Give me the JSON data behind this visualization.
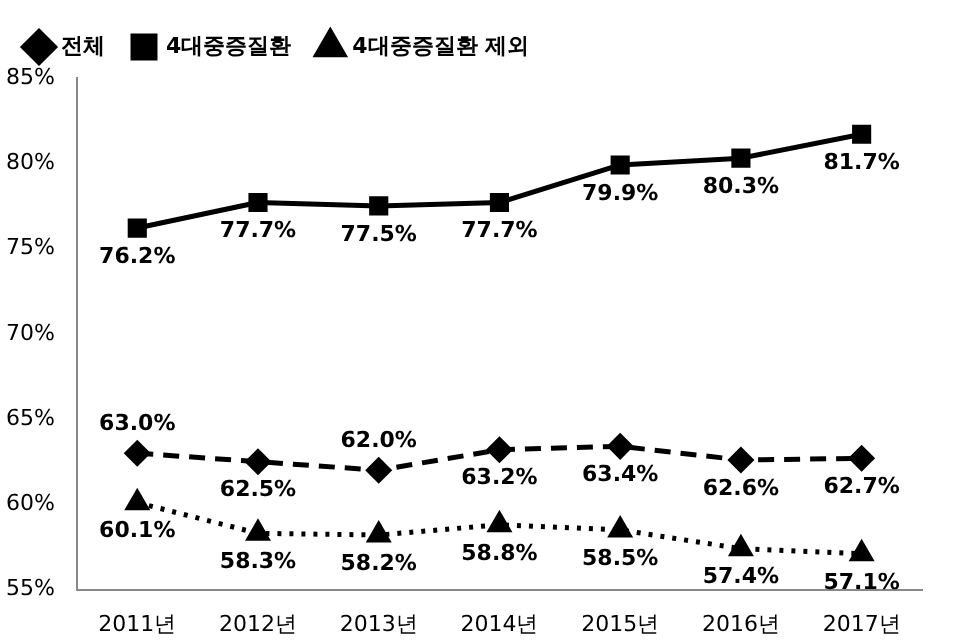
{
  "chart_data": {
    "type": "line",
    "categories": [
      "2011년",
      "2012년",
      "2013년",
      "2014년",
      "2015년",
      "2016년",
      "2017년"
    ],
    "series": [
      {
        "name": "전체",
        "color": "#000000",
        "marker": "diamond",
        "line_style": "dashed",
        "values": [
          63.0,
          62.5,
          62.0,
          63.2,
          63.4,
          62.6,
          62.7
        ],
        "value_labels": [
          "63.0%",
          "62.5%",
          "62.0%",
          "63.2%",
          "63.4%",
          "62.6%",
          "62.7%"
        ]
      },
      {
        "name": "4대중증질환",
        "color": "#000000",
        "marker": "square",
        "line_style": "solid",
        "values": [
          76.2,
          77.7,
          77.5,
          77.7,
          79.9,
          80.3,
          81.7
        ],
        "value_labels": [
          "76.2%",
          "77.7%",
          "77.5%",
          "77.7%",
          "79.9%",
          "80.3%",
          "81.7%"
        ]
      },
      {
        "name": "4대중증질환 제외",
        "color": "#000000",
        "marker": "triangle",
        "line_style": "dotted",
        "values": [
          60.1,
          58.3,
          58.2,
          58.8,
          58.5,
          57.4,
          57.1
        ],
        "value_labels": [
          "60.1%",
          "58.3%",
          "58.2%",
          "58.8%",
          "58.5%",
          "57.4%",
          "57.1%"
        ]
      }
    ],
    "ylim": [
      55,
      85
    ],
    "yticks": [
      {
        "value": 55,
        "label": "55%"
      },
      {
        "value": 60,
        "label": "60%"
      },
      {
        "value": 65,
        "label": "65%"
      },
      {
        "value": 70,
        "label": "70%"
      },
      {
        "value": 75,
        "label": "75%"
      },
      {
        "value": 80,
        "label": "80%"
      },
      {
        "value": 85,
        "label": "85%"
      }
    ],
    "grid": false,
    "legend": "top left"
  }
}
